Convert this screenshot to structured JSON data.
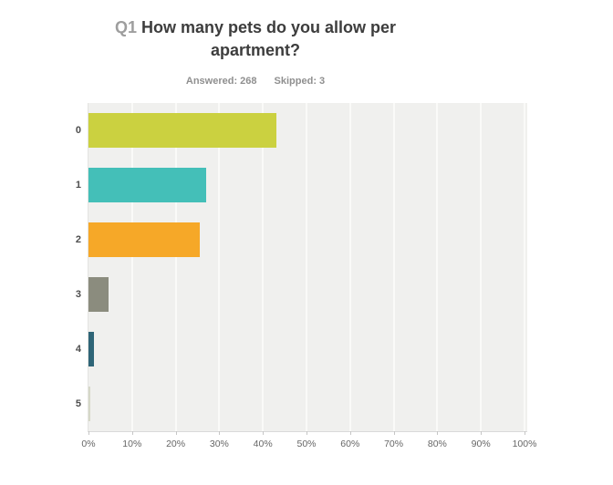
{
  "header": {
    "q_label": "Q1",
    "title": "How many pets do you allow per apartment?",
    "answered_label": "Answered:",
    "answered_value": "268",
    "skipped_label": "Skipped:",
    "skipped_value": "3"
  },
  "chart_data": {
    "type": "bar",
    "orientation": "horizontal",
    "title": "Q1 How many pets do you allow per apartment?",
    "subtitle": "Answered: 268  Skipped: 3",
    "categories": [
      "0",
      "1",
      "2",
      "3",
      "4",
      "5"
    ],
    "values": [
      43,
      27,
      25.5,
      4.5,
      1.2,
      0.4
    ],
    "value_unit": "%",
    "xlabel": "",
    "ylabel": "",
    "xlim": [
      0,
      100
    ],
    "x_tick_labels": [
      "0%",
      "10%",
      "20%",
      "30%",
      "40%",
      "50%",
      "60%",
      "70%",
      "80%",
      "90%",
      "100%"
    ],
    "grid": true,
    "legend": false,
    "bar_colors": [
      "#cbd140",
      "#44bfb8",
      "#f6a828",
      "#8b8c7e",
      "#2f6577",
      "#d6d8c8"
    ],
    "plot_background": "#f0f0ee",
    "gridline_color": "#fafaf8",
    "axis_text_color": "#666666"
  }
}
